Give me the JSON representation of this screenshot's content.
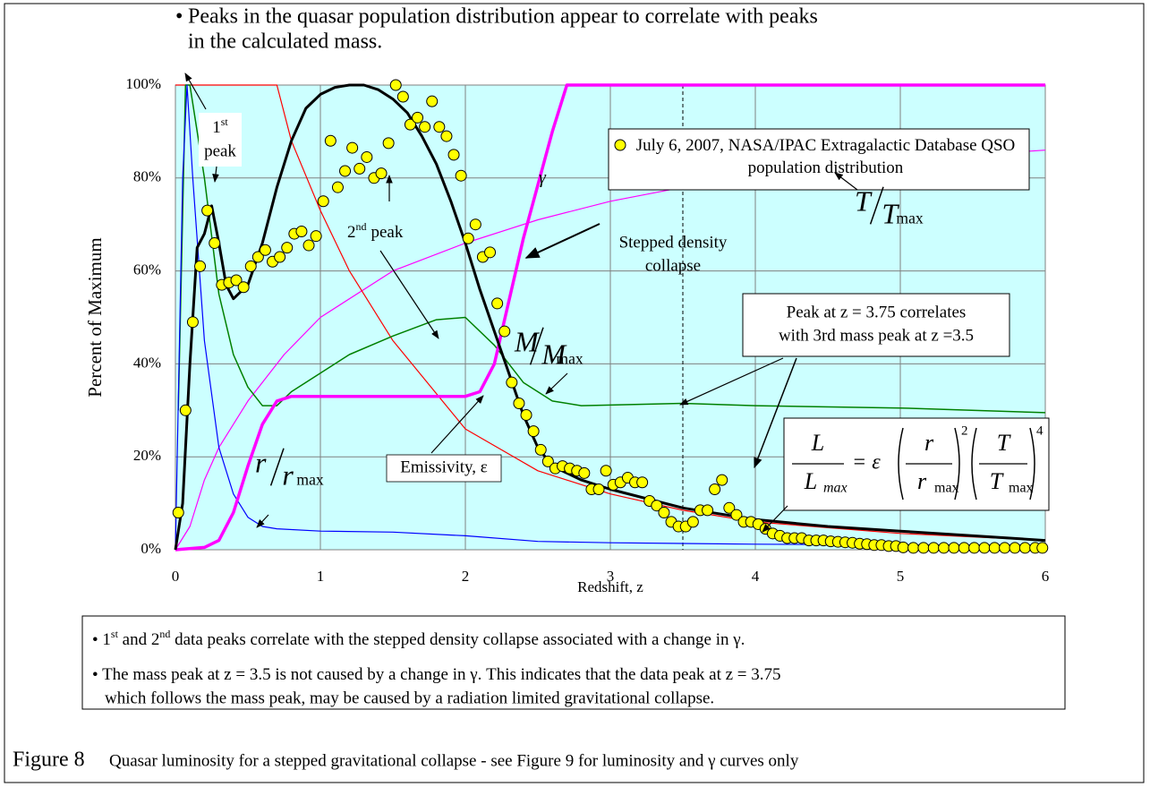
{
  "chart_data": {
    "type": "line",
    "title": [
      "Peaks in the quasar population distribution appear to correlate with peaks",
      "in the calculated mass."
    ],
    "x_label": "Redshift, z",
    "y_label": "Percent of Maximum",
    "xlim": [
      0,
      6
    ],
    "ylim": [
      0,
      100
    ],
    "xticks": [
      0,
      1,
      2,
      3,
      4,
      5,
      6
    ],
    "yticks": [
      {
        "value": 0,
        "label": "0%"
      },
      {
        "value": 20,
        "label": "20%"
      },
      {
        "value": 40,
        "label": "40%"
      },
      {
        "value": 60,
        "label": "60%"
      },
      {
        "value": 80,
        "label": "80%"
      },
      {
        "value": 100,
        "label": "100%"
      }
    ],
    "grid": true,
    "vline": 3.5,
    "series": [
      {
        "type": "line",
        "color": "#ff00ff",
        "width": 1.2,
        "x": [
          0,
          0.1,
          0.2,
          0.3,
          0.5,
          0.75,
          1,
          1.5,
          2,
          2.5,
          3,
          3.5,
          4,
          5,
          6
        ],
        "values": [
          0,
          5,
          15,
          22,
          32,
          42,
          50,
          60,
          66,
          71,
          75,
          78,
          80.5,
          84,
          86
        ]
      },
      {
        "type": "line",
        "color": "#ff0000",
        "width": 1.2,
        "x": [
          0,
          0.7,
          0.8,
          1,
          1.2,
          1.5,
          2,
          2.5,
          3,
          3.5,
          4,
          5,
          6
        ],
        "values": [
          100,
          100,
          88,
          73,
          60,
          45,
          26,
          17,
          12,
          8.5,
          6,
          3.5,
          2
        ]
      },
      {
        "type": "line",
        "color": "#008000",
        "width": 1.5,
        "x": [
          0.02,
          0.07,
          0.1,
          0.2,
          0.3,
          0.4,
          0.5,
          0.6,
          0.7,
          0.8,
          1,
          1.2,
          1.5,
          1.8,
          2,
          2.2,
          2.4,
          2.6,
          2.8,
          3.5,
          4,
          5,
          6
        ],
        "values": [
          30,
          100,
          100,
          80,
          55,
          42,
          35,
          31,
          31,
          34,
          38,
          42,
          46,
          49.5,
          50,
          44,
          36,
          32,
          31,
          31.5,
          31,
          30.5,
          29.5
        ]
      },
      {
        "type": "line",
        "color": "#0000ff",
        "width": 1.2,
        "x": [
          0,
          0.05,
          0.08,
          0.12,
          0.2,
          0.3,
          0.4,
          0.5,
          0.6,
          0.7,
          1,
          1.5,
          2,
          2.5,
          3,
          4,
          5,
          6
        ],
        "values": [
          0,
          80,
          100,
          80,
          45,
          22,
          12,
          7,
          5,
          4.5,
          4,
          3.8,
          3,
          1.8,
          1.5,
          1.2,
          1,
          1
        ]
      },
      {
        "type": "line",
        "color": "#ff00ff",
        "width": 3.5,
        "x": [
          0,
          0.2,
          0.3,
          0.4,
          0.5,
          0.6,
          0.7,
          0.8,
          1,
          2,
          2.1,
          2.2,
          2.4,
          2.6,
          2.7,
          6
        ],
        "values": [
          0,
          0.5,
          2,
          8,
          18,
          27,
          32,
          33,
          33,
          33,
          34,
          40,
          67,
          90,
          100,
          100
        ]
      },
      {
        "type": "line",
        "color": "#000000",
        "width": 3,
        "x": [
          0,
          0.05,
          0.1,
          0.15,
          0.2,
          0.25,
          0.3,
          0.35,
          0.4,
          0.5,
          0.6,
          0.7,
          0.8,
          0.9,
          1.0,
          1.1,
          1.2,
          1.3,
          1.4,
          1.5,
          1.6,
          1.7,
          1.8,
          1.9,
          2.0,
          2.1,
          2.2,
          2.3,
          2.4,
          2.5,
          2.6,
          2.8,
          3.0,
          3.5,
          4,
          4.5,
          5,
          5.5,
          6
        ],
        "values": [
          0,
          10,
          40,
          65,
          68,
          74,
          66,
          57,
          54,
          57,
          66,
          78,
          88,
          95,
          98,
          99.5,
          100,
          100,
          99,
          97,
          94,
          89,
          83,
          75,
          66,
          56,
          47,
          38,
          29,
          22,
          18,
          15,
          13,
          9,
          6.5,
          5,
          4,
          3,
          2
        ]
      },
      {
        "type": "scatter",
        "name": "July 6, 2007, NASA/IPAC Extragalactic Database QSO population distribution",
        "color": "#ffff00",
        "x": [
          0.02,
          0.07,
          0.12,
          0.17,
          0.22,
          0.27,
          0.32,
          0.37,
          0.42,
          0.47,
          0.52,
          0.57,
          0.62,
          0.67,
          0.72,
          0.77,
          0.82,
          0.87,
          0.92,
          0.97,
          1.02,
          1.07,
          1.12,
          1.17,
          1.22,
          1.27,
          1.32,
          1.37,
          1.42,
          1.47,
          1.52,
          1.57,
          1.62,
          1.67,
          1.72,
          1.77,
          1.82,
          1.87,
          1.92,
          1.97,
          2.02,
          2.07,
          2.12,
          2.17,
          2.22,
          2.27,
          2.32,
          2.37,
          2.42,
          2.47,
          2.52,
          2.57,
          2.62,
          2.67,
          2.72,
          2.77,
          2.82,
          2.87,
          2.92,
          2.97,
          3.02,
          3.07,
          3.12,
          3.17,
          3.22,
          3.27,
          3.32,
          3.37,
          3.42,
          3.47,
          3.52,
          3.57,
          3.62,
          3.67,
          3.72,
          3.77,
          3.82,
          3.87,
          3.92,
          3.97,
          4.02,
          4.07,
          4.12,
          4.17,
          4.22,
          4.27,
          4.32,
          4.37,
          4.42,
          4.47,
          4.52,
          4.57,
          4.62,
          4.67,
          4.72,
          4.77,
          4.82,
          4.87,
          4.92,
          4.97,
          5.02,
          5.09,
          5.16,
          5.23,
          5.3,
          5.37,
          5.44,
          5.51,
          5.58,
          5.65,
          5.72,
          5.79,
          5.86,
          5.93,
          5.98
        ],
        "values": [
          8,
          30,
          49,
          61,
          73,
          66,
          57,
          57.5,
          58,
          56.5,
          61,
          63,
          64.5,
          62,
          63,
          65,
          68,
          68.5,
          65.5,
          67.5,
          75,
          88,
          78,
          81.5,
          86.5,
          82,
          84.5,
          80,
          81,
          87.5,
          100,
          97.5,
          91.5,
          93,
          91,
          96.5,
          91,
          89,
          85,
          80.5,
          67,
          70,
          63,
          64,
          53,
          47,
          36,
          31.5,
          29,
          25.5,
          21.5,
          19,
          17.5,
          18,
          17.5,
          17,
          16.5,
          13,
          13,
          17,
          14,
          14.5,
          15.5,
          14.5,
          14.5,
          10.5,
          9.5,
          8,
          6,
          5,
          5,
          6,
          8.5,
          8.5,
          13,
          15,
          9,
          7.5,
          6,
          6,
          5.5,
          4.5,
          3.5,
          3,
          2.5,
          2.5,
          2.5,
          2,
          2,
          2,
          1.8,
          1.7,
          1.6,
          1.5,
          1.3,
          1.2,
          1,
          1,
          0.8,
          0.8,
          0.5,
          0.4,
          0.4,
          0.4,
          0.4,
          0.4,
          0.4,
          0.4,
          0.4,
          0.4,
          0.4,
          0.4,
          0.4,
          0.4,
          0.4
        ]
      }
    ],
    "annotations": {
      "first_peak": {
        "num": "1",
        "suffix": "st",
        "word": "peak"
      },
      "second_peak": {
        "num": "2",
        "suffix": "nd",
        "word": "peak"
      },
      "gamma": "γ",
      "stepped": [
        "Stepped density",
        "collapse"
      ],
      "t_ratio": {
        "var": "T",
        "sub": "max"
      },
      "m_ratio": {
        "var": "M",
        "sub": "max"
      },
      "r_ratio": {
        "var": "r",
        "sub": "max"
      },
      "emissivity": "Emissivity, ε",
      "peak_box": [
        "Peak at z = 3.75 correlates",
        "with 3rd mass peak at z =3.5"
      ],
      "formula": {
        "L": "L",
        "L_sub": "max",
        "eq": "= ε",
        "r": "r",
        "r_sub": "max",
        "p2": "2",
        "T": "T",
        "T_sub": "max",
        "p4": "4"
      }
    },
    "notes": [
      [
        "1",
        "st",
        " and 2",
        "nd",
        " data peaks correlate with the stepped density collapse associated with a change in γ."
      ],
      [
        "The mass peak at z = 3.5 is not caused by a change in γ.  This indicates that the data peak at z = 3.75",
        "which follows the mass peak, may be caused by a radiation limited gravitational collapse."
      ]
    ],
    "caption": {
      "label": "Figure 8",
      "text": "Quasar luminosity for a stepped gravitational collapse - see Figure 9 for luminosity and γ curves only"
    }
  }
}
